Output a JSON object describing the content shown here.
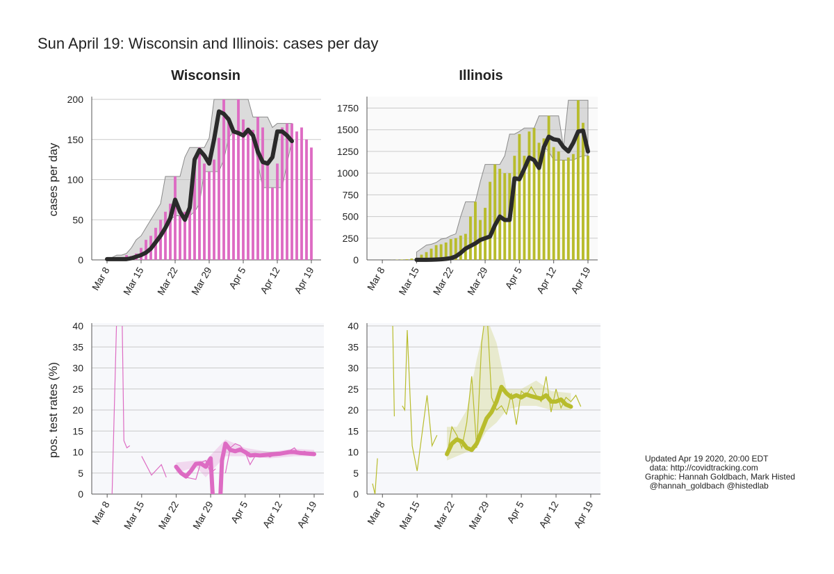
{
  "title": "Sun April 19: Wisconsin and Illinois: cases per day",
  "credits": [
    "Updated Apr 19 2020, 20:00 EDT",
    "  data: http://covidtracking.com",
    "Graphic: Hannah Goldbach, Mark Histed",
    "  @hannah_goldbach @histedlab"
  ],
  "colors": {
    "wisconsin": "#dd6bc3",
    "illinois": "#b8bc2c",
    "smooth": "#2a2a2a",
    "band": "#bdbdbd"
  },
  "chart_data": [
    {
      "id": "wi-cases",
      "type": "bar",
      "panel_title": "Wisconsin",
      "ylabel": "cases per day",
      "xlabel": "",
      "ylim": [
        0,
        200
      ],
      "yticks": [
        0,
        50,
        100,
        150,
        200
      ],
      "x_ticks": [
        "Mar 8",
        "Mar 15",
        "Mar 22",
        "Mar 29",
        "Apr 5",
        "Apr 12",
        "Apr 19"
      ],
      "x_tick_day_index": [
        2,
        9,
        16,
        23,
        30,
        37,
        44
      ],
      "first_date": "Mar 6",
      "last_date": "Apr 19",
      "values": [
        0,
        0,
        0,
        0,
        2,
        3,
        6,
        5,
        8,
        15,
        25,
        30,
        40,
        50,
        60,
        70,
        104,
        55,
        60,
        70,
        128,
        140,
        120,
        110,
        125,
        152,
        200,
        178,
        160,
        200,
        175,
        165,
        162,
        178,
        165,
        120,
        90,
        120,
        165,
        170,
        170,
        160,
        165,
        150,
        140
      ],
      "smooth_values": [
        1,
        1,
        1,
        1,
        1,
        2,
        4,
        6,
        9,
        14,
        22,
        30,
        40,
        52,
        75,
        60,
        50,
        65,
        125,
        137,
        130,
        120,
        150,
        185,
        182,
        175,
        160,
        158,
        155,
        162,
        155,
        135,
        122,
        120,
        128,
        160,
        160,
        155,
        148
      ],
      "smooth_start_index": 2
    },
    {
      "id": "il-cases",
      "type": "bar",
      "panel_title": "Illinois",
      "ylabel": "",
      "xlabel": "",
      "ylim": [
        0,
        1850
      ],
      "yticks": [
        0,
        250,
        500,
        750,
        1000,
        1250,
        1500,
        1750
      ],
      "x_ticks": [
        "Mar 8",
        "Mar 15",
        "Mar 22",
        "Mar 29",
        "Apr 5",
        "Apr 12",
        "Apr 19"
      ],
      "x_tick_day_index": [
        2,
        9,
        16,
        23,
        30,
        37,
        44
      ],
      "first_date": "Mar 6",
      "last_date": "Apr 19",
      "values": [
        0,
        0,
        0,
        0,
        1,
        3,
        5,
        8,
        15,
        25,
        60,
        90,
        130,
        170,
        180,
        200,
        240,
        250,
        280,
        300,
        500,
        670,
        460,
        600,
        900,
        1100,
        1050,
        1000,
        1000,
        1200,
        1450,
        1200,
        1480,
        1520,
        1350,
        1400,
        1660,
        1300,
        1250,
        1150,
        1180,
        1220,
        1840,
        1580,
        1200
      ],
      "smooth_values": [
        1,
        1,
        1,
        2,
        4,
        7,
        12,
        20,
        40,
        80,
        130,
        160,
        190,
        230,
        250,
        270,
        400,
        500,
        460,
        460,
        940,
        930,
        1050,
        1180,
        1150,
        1060,
        1300,
        1420,
        1390,
        1380,
        1300,
        1250,
        1350,
        1480,
        1490,
        1250
      ],
      "smooth_start_index": 9
    },
    {
      "id": "wi-pos",
      "type": "line",
      "panel_title": "",
      "ylabel": "pos. test rates (%)",
      "xlabel": "",
      "ylim": [
        0,
        40
      ],
      "yticks": [
        0,
        5,
        10,
        15,
        20,
        25,
        30,
        35,
        40
      ],
      "x_ticks": [
        "Mar 8",
        "Mar 15",
        "Mar 22",
        "Mar 29",
        "Apr 5",
        "Apr 12",
        "Apr 19"
      ],
      "x_tick_day_index": [
        2,
        9,
        16,
        23,
        30,
        37,
        44
      ],
      "raw_segments": [
        [
          [
            3,
            0
          ],
          [
            4,
            45
          ]
        ],
        [
          [
            5,
            45
          ],
          [
            5.4,
            12.7
          ],
          [
            6,
            11
          ],
          [
            6.6,
            11.5
          ]
        ],
        [
          [
            9,
            9
          ],
          [
            11,
            4.5
          ],
          [
            13,
            7
          ],
          [
            14,
            4
          ]
        ],
        [
          [
            16,
            6.5
          ],
          [
            18,
            4
          ],
          [
            20,
            3.5
          ],
          [
            21,
            7.5
          ],
          [
            22,
            8
          ],
          [
            23,
            5
          ],
          [
            24,
            6
          ]
        ],
        [
          [
            26,
            5
          ],
          [
            27,
            11
          ],
          [
            28,
            12
          ],
          [
            29,
            11.5
          ],
          [
            30,
            10
          ],
          [
            31,
            7
          ],
          [
            32,
            9
          ],
          [
            33,
            9
          ],
          [
            34,
            9.5
          ],
          [
            35,
            8.8
          ],
          [
            36,
            9.3
          ],
          [
            37,
            9.8
          ],
          [
            38,
            9.5
          ],
          [
            39,
            10.3
          ],
          [
            40,
            11
          ],
          [
            41,
            9.5
          ],
          [
            42,
            10.2
          ],
          [
            43,
            9.8
          ],
          [
            44,
            9.5
          ]
        ]
      ],
      "smooth_points": [
        [
          16,
          6.5
        ],
        [
          17,
          5
        ],
        [
          18,
          4.2
        ],
        [
          19,
          5.5
        ],
        [
          20,
          7.2
        ],
        [
          21,
          7.3
        ],
        [
          22,
          6.5
        ],
        [
          23,
          8.5
        ],
        [
          23.4,
          0
        ]
      ],
      "smooth_points_2": [
        [
          25,
          0
        ],
        [
          25.3,
          8
        ],
        [
          26,
          12
        ],
        [
          27,
          10.5
        ],
        [
          28,
          10.2
        ],
        [
          29,
          10.6
        ],
        [
          30,
          10
        ],
        [
          31,
          9.2
        ],
        [
          32,
          9.3
        ],
        [
          33,
          9.2
        ],
        [
          34,
          9.3
        ],
        [
          35,
          9.4
        ],
        [
          36,
          9.5
        ],
        [
          37,
          9.6
        ],
        [
          38,
          9.8
        ],
        [
          39,
          10
        ],
        [
          40,
          10
        ],
        [
          41,
          9.8
        ],
        [
          42,
          9.7
        ],
        [
          43,
          9.6
        ],
        [
          44,
          9.5
        ]
      ],
      "band_points": [
        [
          16,
          7.5,
          5
        ],
        [
          20,
          8,
          6.5
        ],
        [
          22,
          8,
          4
        ],
        [
          26,
          13,
          9
        ],
        [
          30,
          11,
          9
        ],
        [
          35,
          10,
          8.5
        ],
        [
          40,
          10.8,
          9
        ],
        [
          44,
          10.5,
          9
        ]
      ]
    },
    {
      "id": "il-pos",
      "type": "line",
      "panel_title": "",
      "ylabel": "",
      "xlabel": "",
      "ylim": [
        0,
        40
      ],
      "yticks": [
        0,
        5,
        10,
        15,
        20,
        25,
        30,
        35,
        40
      ],
      "x_ticks": [
        "Mar 8",
        "Mar 15",
        "Mar 22",
        "Mar 29",
        "Apr 5",
        "Apr 12",
        "Apr 19"
      ],
      "x_tick_day_index": [
        2,
        9,
        16,
        23,
        30,
        37,
        44
      ],
      "raw_segments": [
        [
          [
            0,
            2.5
          ],
          [
            0.5,
            0
          ],
          [
            1,
            8.5
          ]
        ],
        [
          [
            4,
            45
          ],
          [
            4.4,
            18.5
          ]
        ],
        [
          [
            6,
            21
          ],
          [
            6.5,
            20
          ],
          [
            7,
            39
          ],
          [
            8,
            11.5
          ],
          [
            9,
            5.5
          ],
          [
            11,
            23.5
          ],
          [
            12,
            11.5
          ],
          [
            13,
            14
          ]
        ],
        [
          [
            15,
            9
          ],
          [
            16,
            16
          ],
          [
            17,
            14
          ],
          [
            18,
            11
          ],
          [
            19,
            17
          ],
          [
            20,
            28
          ],
          [
            21,
            11
          ],
          [
            22,
            36
          ],
          [
            23,
            45
          ],
          [
            24,
            23
          ],
          [
            25,
            20
          ],
          [
            26,
            21
          ],
          [
            27,
            19
          ],
          [
            28,
            24
          ],
          [
            29,
            16.5
          ],
          [
            30,
            24.5
          ],
          [
            31,
            23.5
          ],
          [
            32,
            25.5
          ],
          [
            33,
            23.5
          ],
          [
            34,
            22
          ],
          [
            35,
            28
          ],
          [
            36,
            19.5
          ],
          [
            37,
            25
          ],
          [
            38,
            20.5
          ],
          [
            39,
            23
          ],
          [
            40,
            22
          ],
          [
            41,
            23.5
          ],
          [
            42,
            20.8
          ]
        ]
      ],
      "smooth_points": [
        [
          15,
          9.5
        ],
        [
          16,
          12
        ],
        [
          17,
          13
        ],
        [
          18,
          12.5
        ],
        [
          19,
          11
        ],
        [
          20,
          10.5
        ],
        [
          21,
          12
        ],
        [
          22,
          15
        ],
        [
          23,
          18
        ],
        [
          24,
          19.5
        ],
        [
          25,
          22
        ],
        [
          26,
          25.5
        ],
        [
          27,
          24
        ],
        [
          28,
          23
        ],
        [
          29,
          23.5
        ],
        [
          30,
          23
        ],
        [
          31,
          23.7
        ],
        [
          32,
          23.3
        ],
        [
          33,
          23
        ],
        [
          34,
          22.7
        ],
        [
          35,
          23.5
        ],
        [
          36,
          22
        ],
        [
          37,
          22
        ],
        [
          38,
          22.5
        ],
        [
          39,
          21.3
        ],
        [
          40,
          20.8
        ]
      ],
      "band_points": [
        [
          15,
          16,
          8
        ],
        [
          17,
          16,
          9
        ],
        [
          19,
          20,
          10
        ],
        [
          21,
          32,
          11
        ],
        [
          23,
          42,
          15
        ],
        [
          25,
          36,
          17
        ],
        [
          27,
          25,
          20
        ],
        [
          30,
          25,
          21
        ],
        [
          33,
          27,
          21
        ],
        [
          36,
          24.5,
          20
        ],
        [
          40,
          24,
          20
        ]
      ]
    }
  ]
}
